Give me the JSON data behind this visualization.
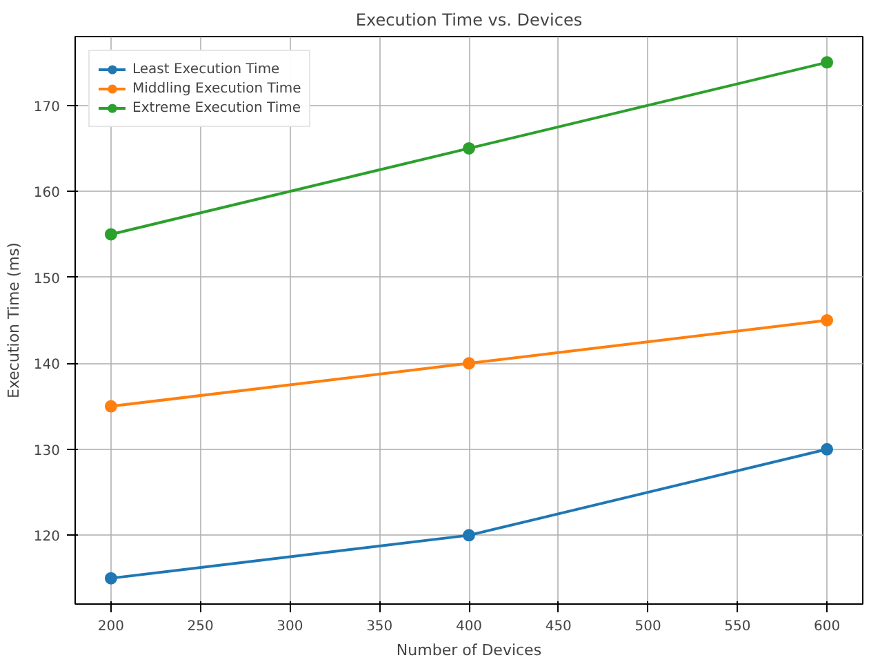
{
  "chart_data": {
    "type": "line",
    "title": "Execution Time vs. Devices",
    "xlabel": "Number of Devices",
    "ylabel": "Execution Time (ms)",
    "x": [
      200,
      400,
      600
    ],
    "series": [
      {
        "name": "Least Execution Time",
        "color": "#1f77b4",
        "values": [
          115,
          120,
          130
        ]
      },
      {
        "name": "Middling Execution Time",
        "color": "#ff7f0e",
        "values": [
          135,
          140,
          145
        ]
      },
      {
        "name": "Extreme Execution Time",
        "color": "#2ca02c",
        "values": [
          155,
          165,
          175
        ]
      }
    ],
    "xlim": [
      180,
      620
    ],
    "ylim": [
      112,
      178
    ],
    "xticks": [
      200,
      250,
      300,
      350,
      400,
      450,
      500,
      550,
      600
    ],
    "yticks": [
      120,
      130,
      140,
      150,
      160,
      170
    ],
    "grid": true,
    "legend": "top left",
    "marker": "circle",
    "line_style": "solid"
  }
}
